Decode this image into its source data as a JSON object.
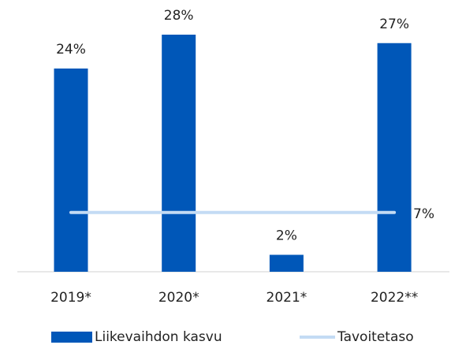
{
  "chart_data": {
    "type": "bar",
    "categories": [
      "2019*",
      "2020*",
      "2021*",
      "2022**"
    ],
    "series": [
      {
        "name": "Liikevaihdon kasvu",
        "color": "#0057b8",
        "values": [
          24,
          28,
          2,
          27
        ],
        "value_labels": [
          "24%",
          "28%",
          "2%",
          "27%"
        ]
      }
    ],
    "target": {
      "name": "Tavoitetaso",
      "color": "#c3dbf4",
      "value": 7,
      "value_label": "7%"
    },
    "ylim": [
      0,
      28
    ],
    "legend": "bottom"
  }
}
